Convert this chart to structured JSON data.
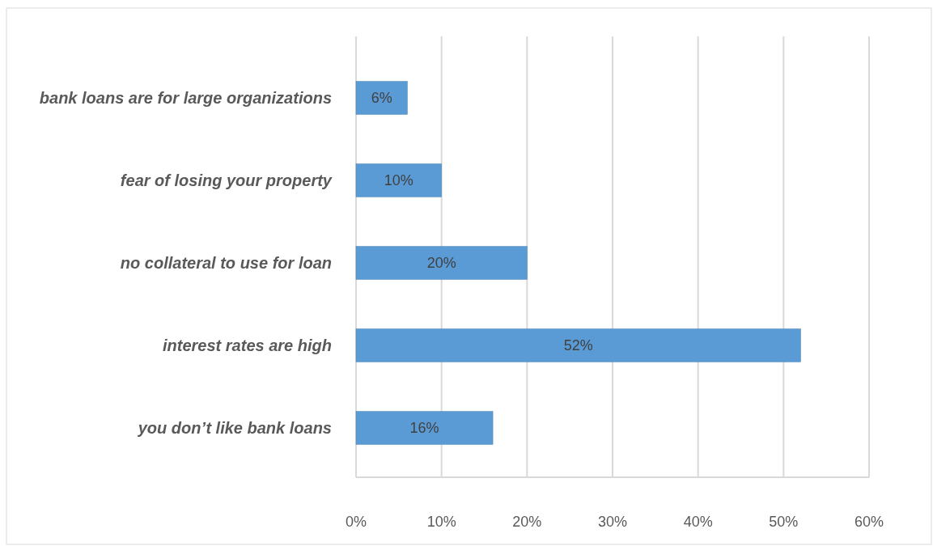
{
  "chart_data": {
    "type": "bar",
    "orientation": "horizontal",
    "categories": [
      "bank loans are for large organizations",
      "fear of losing your property",
      "no collateral to use for loan",
      "interest rates are high",
      "you don’t like bank loans"
    ],
    "values": [
      6,
      10,
      20,
      52,
      16
    ],
    "value_labels": [
      "6%",
      "10%",
      "20%",
      "52%",
      "16%"
    ],
    "color": "#5b9bd5",
    "xlim": [
      0,
      60
    ],
    "xticks": [
      {
        "value": 0,
        "label": "0%"
      },
      {
        "value": 10,
        "label": "10%"
      },
      {
        "value": 20,
        "label": "20%"
      },
      {
        "value": 30,
        "label": "30%"
      },
      {
        "value": 40,
        "label": "40%"
      },
      {
        "value": 50,
        "label": "50%"
      },
      {
        "value": 60,
        "label": "60%"
      }
    ],
    "grid": "x"
  }
}
